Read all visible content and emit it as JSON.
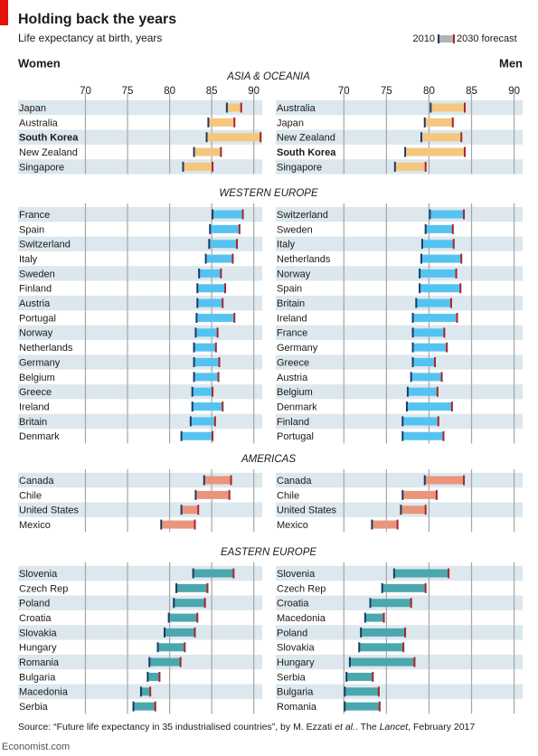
{
  "title": "Holding back the years",
  "subtitle": "Life expectancy at birth, years",
  "legend": {
    "start": "2010",
    "end": "2030 forecast"
  },
  "source": [
    "Source: “Future life expectancy in 35 industrialised countries”, by M. Ezzati ",
    "et al.",
    ". The ",
    "Lancet",
    ", February 2017"
  ],
  "footer": "Economist.com",
  "chart_data": {
    "type": "range",
    "xlim": [
      62,
      91
    ],
    "xticks": [
      70,
      75,
      80,
      85,
      90
    ],
    "grid": true,
    "start_color": "#1c3b63",
    "end_color": "#a8262d",
    "band_color": "#dce7ee",
    "panels": [
      "Women",
      "Men"
    ],
    "sections": [
      {
        "title": "ASIA & OCEANIA",
        "color": "#f5c67e",
        "panels": [
          {
            "categories": [
              "Japan",
              "Australia",
              "South Korea",
              "New Zealand",
              "Singapore"
            ],
            "highlight": 2,
            "start": [
              86.8,
              84.6,
              84.4,
              82.9,
              81.6
            ],
            "end": [
              88.5,
              87.7,
              90.8,
              86.1,
              85.1
            ]
          },
          {
            "categories": [
              "Australia",
              "Japan",
              "New Zealand",
              "South Korea",
              "Singapore"
            ],
            "highlight": 3,
            "start": [
              80.2,
              79.5,
              79.1,
              77.2,
              76.0
            ],
            "end": [
              84.2,
              82.8,
              83.8,
              84.2,
              79.6
            ]
          }
        ]
      },
      {
        "title": "WESTERN EUROPE",
        "color": "#55c3f0",
        "panels": [
          {
            "categories": [
              "France",
              "Spain",
              "Switzerland",
              "Italy",
              "Sweden",
              "Finland",
              "Austria",
              "Portugal",
              "Norway",
              "Netherlands",
              "Germany",
              "Belgium",
              "Greece",
              "Ireland",
              "Britain",
              "Denmark"
            ],
            "start": [
              85.1,
              84.8,
              84.7,
              84.3,
              83.5,
              83.3,
              83.3,
              83.2,
              83.1,
              82.9,
              82.9,
              82.9,
              82.7,
              82.7,
              82.5,
              81.4
            ],
            "end": [
              88.7,
              88.3,
              88.0,
              87.5,
              86.1,
              86.6,
              86.3,
              87.7,
              85.7,
              85.5,
              85.9,
              85.8,
              85.1,
              86.3,
              85.4,
              85.1
            ]
          },
          {
            "categories": [
              "Switzerland",
              "Sweden",
              "Italy",
              "Netherlands",
              "Norway",
              "Spain",
              "Britain",
              "Ireland",
              "France",
              "Germany",
              "Greece",
              "Austria",
              "Belgium",
              "Denmark",
              "Finland",
              "Portugal"
            ],
            "start": [
              80.1,
              79.6,
              79.2,
              79.1,
              78.9,
              78.9,
              78.5,
              78.1,
              78.1,
              78.1,
              78.1,
              77.9,
              77.5,
              77.4,
              76.9,
              76.9
            ],
            "end": [
              84.1,
              82.8,
              82.9,
              83.8,
              83.2,
              83.7,
              82.6,
              83.3,
              81.8,
              82.1,
              80.7,
              81.5,
              81.0,
              82.7,
              81.1,
              81.7
            ]
          }
        ]
      },
      {
        "title": "AMERICAS",
        "color": "#e9957c",
        "panels": [
          {
            "categories": [
              "Canada",
              "Chile",
              "United States",
              "Mexico"
            ],
            "start": [
              84.1,
              83.1,
              81.4,
              79.0
            ],
            "end": [
              87.3,
              87.1,
              83.4,
              83.0
            ]
          },
          {
            "categories": [
              "Canada",
              "Chile",
              "United States",
              "Mexico"
            ],
            "start": [
              79.5,
              76.9,
              76.7,
              73.3
            ],
            "end": [
              84.1,
              80.9,
              79.6,
              76.3
            ]
          }
        ]
      },
      {
        "title": "EASTERN EUROPE",
        "color": "#4aa7ad",
        "panels": [
          {
            "categories": [
              "Slovenia",
              "Czech Rep",
              "Poland",
              "Croatia",
              "Slovakia",
              "Hungary",
              "Romania",
              "Bulgaria",
              "Macedonia",
              "Serbia"
            ],
            "start": [
              82.8,
              80.8,
              80.5,
              79.9,
              79.4,
              78.6,
              77.6,
              77.4,
              76.6,
              75.7
            ],
            "end": [
              87.6,
              84.5,
              84.2,
              83.3,
              83.0,
              81.8,
              81.3,
              78.8,
              77.7,
              78.3
            ]
          },
          {
            "categories": [
              "Slovenia",
              "Czech Rep",
              "Croatia",
              "Macedonia",
              "Poland",
              "Slovakia",
              "Hungary",
              "Serbia",
              "Bulgaria",
              "Romania"
            ],
            "start": [
              75.9,
              74.5,
              73.1,
              72.5,
              72.0,
              71.8,
              70.7,
              70.3,
              70.1,
              70.1
            ],
            "end": [
              82.3,
              79.6,
              77.9,
              74.7,
              77.2,
              77.0,
              78.3,
              73.4,
              74.1,
              74.2
            ]
          }
        ]
      }
    ]
  }
}
